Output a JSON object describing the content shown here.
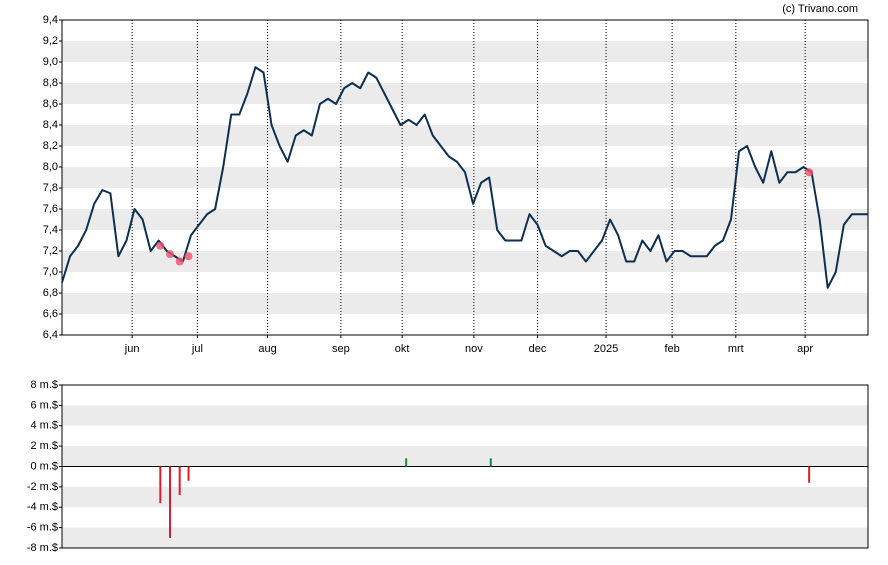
{
  "source": "(c) Trivano.com",
  "chart_data": [
    {
      "type": "line",
      "xlim": [
        0,
        100
      ],
      "xticks": [
        {
          "value": 8.7,
          "label": "jun"
        },
        {
          "value": 16.8,
          "label": "jul"
        },
        {
          "value": 25.5,
          "label": "aug"
        },
        {
          "value": 34.6,
          "label": "sep"
        },
        {
          "value": 42.2,
          "label": "okt"
        },
        {
          "value": 51.1,
          "label": "nov"
        },
        {
          "value": 59.0,
          "label": "dec"
        },
        {
          "value": 67.5,
          "label": "2025"
        },
        {
          "value": 75.7,
          "label": "feb"
        },
        {
          "value": 83.6,
          "label": "mrt"
        },
        {
          "value": 92.2,
          "label": "apr"
        }
      ],
      "ylim": [
        6.4,
        9.4
      ],
      "yticks": [
        {
          "value": 6.4,
          "label": "6,4"
        },
        {
          "value": 6.6,
          "label": "6,6"
        },
        {
          "value": 6.8,
          "label": "6,8"
        },
        {
          "value": 7.0,
          "label": "7,0"
        },
        {
          "value": 7.2,
          "label": "7,2"
        },
        {
          "value": 7.4,
          "label": "7,4"
        },
        {
          "value": 7.6,
          "label": "7,6"
        },
        {
          "value": 7.8,
          "label": "7,8"
        },
        {
          "value": 8.0,
          "label": "8,0"
        },
        {
          "value": 8.2,
          "label": "8,2"
        },
        {
          "value": 8.4,
          "label": "8,4"
        },
        {
          "value": 8.6,
          "label": "8,6"
        },
        {
          "value": 8.8,
          "label": "8,8"
        },
        {
          "value": 9.0,
          "label": "9,0"
        },
        {
          "value": 9.2,
          "label": "9,2"
        },
        {
          "value": 9.4,
          "label": "9,4"
        }
      ],
      "color": "#0d3050",
      "x": [
        0,
        1,
        2,
        3,
        4,
        5,
        6,
        7,
        8,
        9,
        10,
        11,
        12,
        13,
        14,
        15,
        16,
        17,
        18,
        19,
        20,
        21,
        22,
        23,
        24,
        25,
        26,
        27,
        28,
        29,
        30,
        31,
        32,
        33,
        34,
        35,
        36,
        37,
        38,
        39,
        40,
        41,
        42,
        43,
        44,
        45,
        46,
        47,
        48,
        49,
        50,
        51,
        52,
        53,
        54,
        55,
        56,
        57,
        58,
        59,
        60,
        61,
        62,
        63,
        64,
        65,
        66,
        67,
        68,
        69,
        70,
        71,
        72,
        73,
        74,
        75,
        76,
        77,
        78,
        79,
        80,
        81,
        82,
        83,
        84,
        85,
        86,
        87,
        88,
        89,
        90,
        91,
        92,
        93,
        94,
        95,
        96,
        97,
        98,
        99,
        100
      ],
      "values": [
        6.9,
        7.15,
        7.25,
        7.4,
        7.65,
        7.78,
        7.75,
        7.15,
        7.3,
        7.6,
        7.5,
        7.2,
        7.3,
        7.2,
        7.15,
        7.1,
        7.35,
        7.45,
        7.55,
        7.6,
        8.0,
        8.5,
        8.5,
        8.7,
        8.95,
        8.9,
        8.4,
        8.2,
        8.05,
        8.3,
        8.35,
        8.3,
        8.6,
        8.65,
        8.6,
        8.75,
        8.8,
        8.75,
        8.9,
        8.85,
        8.7,
        8.55,
        8.4,
        8.45,
        8.4,
        8.5,
        8.3,
        8.2,
        8.1,
        8.05,
        7.95,
        7.65,
        7.85,
        7.9,
        7.4,
        7.3,
        7.3,
        7.3,
        7.55,
        7.45,
        7.25,
        7.2,
        7.15,
        7.2,
        7.2,
        7.1,
        7.2,
        7.3,
        7.5,
        7.35,
        7.1,
        7.1,
        7.3,
        7.2,
        7.35,
        7.1,
        7.2,
        7.2,
        7.15,
        7.15,
        7.15,
        7.25,
        7.3,
        7.5,
        8.15,
        8.2,
        8.0,
        7.85,
        8.15,
        7.85,
        7.95,
        7.95,
        8.0,
        7.95,
        7.5,
        6.85,
        7.0,
        7.45,
        7.55,
        7.55,
        7.55
      ],
      "markers": {
        "color": "#f0506e",
        "x": [
          12.2,
          13.4,
          14.6,
          15.7,
          92.7
        ],
        "values": [
          7.25,
          7.17,
          7.1,
          7.15,
          7.95
        ]
      },
      "grid": true
    },
    {
      "type": "bar",
      "xlim": [
        0,
        100
      ],
      "ylim": [
        -8,
        8
      ],
      "yticks": [
        {
          "value": -8,
          "label": "-8 m.$"
        },
        {
          "value": -6,
          "label": "-6 m.$"
        },
        {
          "value": -4,
          "label": "-4 m.$"
        },
        {
          "value": -2,
          "label": "-2 m.$"
        },
        {
          "value": 0,
          "label": "0 m.$"
        },
        {
          "value": 2,
          "label": "2 m.$"
        },
        {
          "value": 4,
          "label": "4 m.$"
        },
        {
          "value": 6,
          "label": "6 m.$"
        },
        {
          "value": 8,
          "label": "8 m.$"
        }
      ],
      "positive_color": "#1a8a3a",
      "negative_color": "#d81e2c",
      "x": [
        12.2,
        13.4,
        14.6,
        15.7,
        42.7,
        53.2,
        92.7
      ],
      "values": [
        -3.6,
        -7,
        -2.8,
        -1.4,
        0.8,
        0.8,
        -1.6
      ],
      "grid": true
    }
  ]
}
